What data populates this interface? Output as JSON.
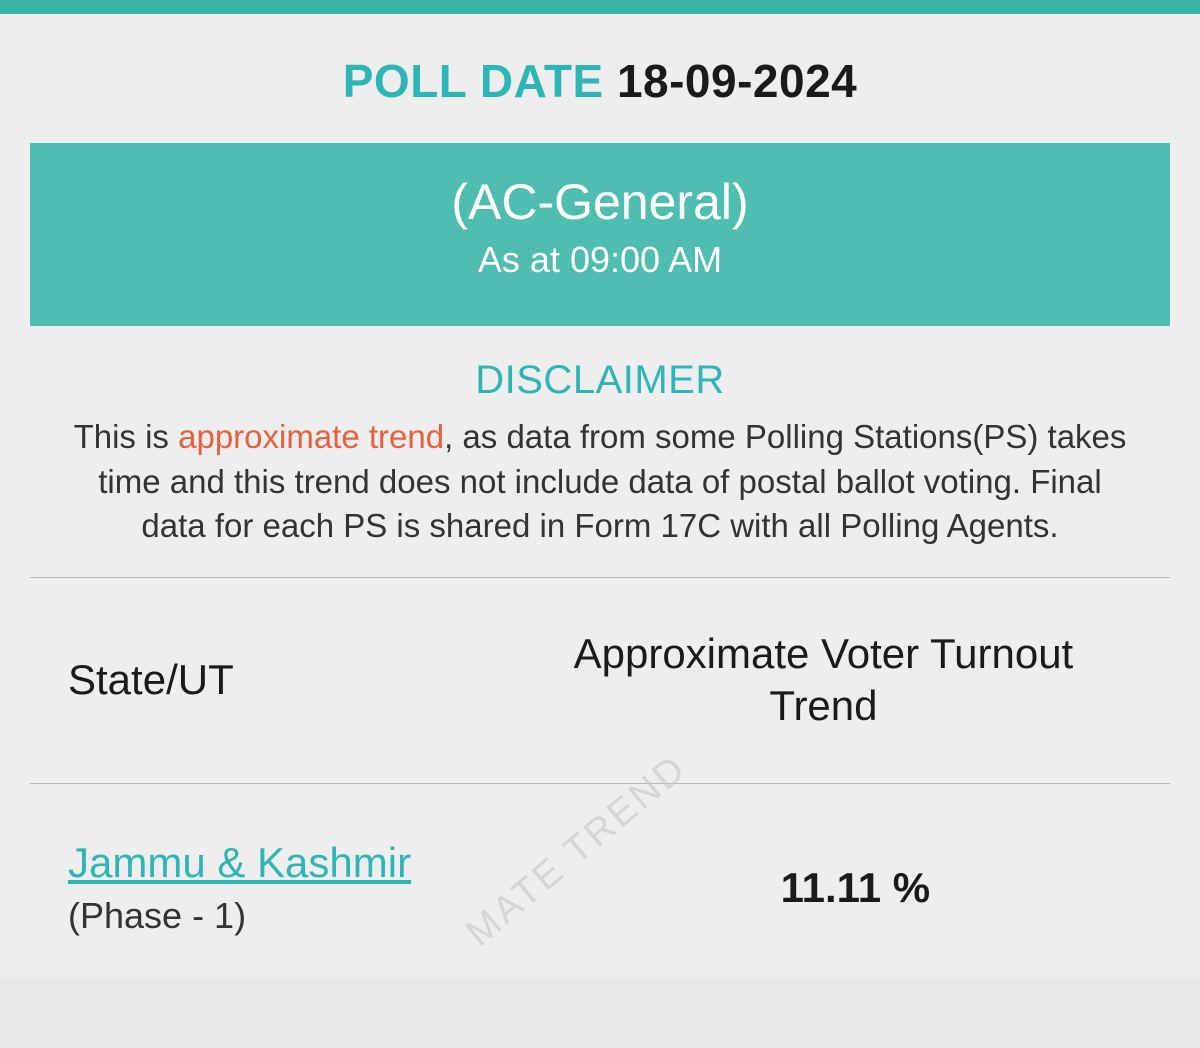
{
  "header": {
    "poll_date_label": "POLL DATE",
    "poll_date_value": "18-09-2024"
  },
  "banner": {
    "title": "(AC-General)",
    "subtitle": "As at 09:00 AM"
  },
  "disclaimer": {
    "title": "DISCLAIMER",
    "text_before": "This is ",
    "highlight": "approximate trend",
    "text_after": ", as data from some Polling Stations(PS) takes time and this trend does not include data of postal ballot voting. Final data for each PS is shared in Form 17C with all Polling Agents."
  },
  "table": {
    "headers": {
      "state": "State/UT",
      "turnout": "Approximate Voter Turnout Trend"
    },
    "row": {
      "state_name": "Jammu & Kashmir",
      "phase": "(Phase - 1)",
      "turnout_value": "11.11 %"
    }
  },
  "watermark": "MATE TREND",
  "colors": {
    "teal": "#2eb5b5",
    "teal_banner": "#4fbdb0",
    "top_bar": "#3cb4a4",
    "orange": "#e8613c",
    "text_dark": "#1a1a1a",
    "text_body": "#333333",
    "bg_page": "#e8e8e8",
    "bg_container": "#eeeeee",
    "border": "#b8b8b8",
    "watermark": "#c8c8c8"
  }
}
